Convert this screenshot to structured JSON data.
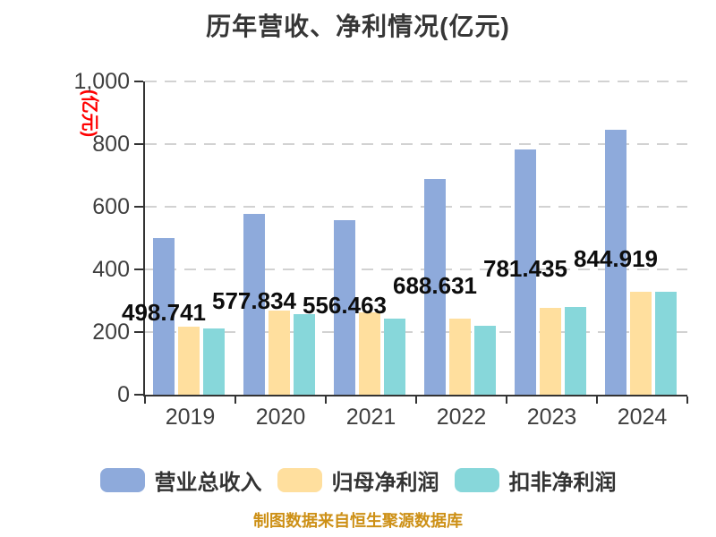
{
  "title": "历年营收、净利情况(亿元)",
  "y_axis": {
    "unit_label": "(亿元)",
    "unit_color": "#ff0000",
    "tick_labels": [
      "0",
      "200",
      "400",
      "600",
      "800",
      "1,000"
    ],
    "min": 0,
    "max": 1000,
    "step": 200
  },
  "chart_data": {
    "type": "bar",
    "title": "历年营收、净利情况(亿元)",
    "categories": [
      "2019",
      "2020",
      "2021",
      "2022",
      "2023",
      "2024"
    ],
    "series": [
      {
        "name": "营业总收入",
        "color": "#8eaadb",
        "values": [
          498.741,
          577.834,
          556.463,
          688.631,
          781.435,
          844.919
        ],
        "data_labels": [
          "498.741",
          "577.834",
          "556.463",
          "688.631",
          "781.435",
          "844.919"
        ]
      },
      {
        "name": "归母净利润",
        "color": "#ffdf9e",
        "values": [
          216,
          268,
          263,
          243,
          277,
          330
        ],
        "estimated": true
      },
      {
        "name": "扣非净利润",
        "color": "#87d7da",
        "values": [
          212,
          258,
          243,
          221,
          280,
          330
        ],
        "estimated": true
      }
    ],
    "ylim": [
      0,
      1000
    ],
    "grid": "horizontal-dashed",
    "legend_position": "bottom"
  },
  "footer": {
    "caption": "制图数据来自恒生聚源数据库",
    "color": "#cd9016"
  }
}
